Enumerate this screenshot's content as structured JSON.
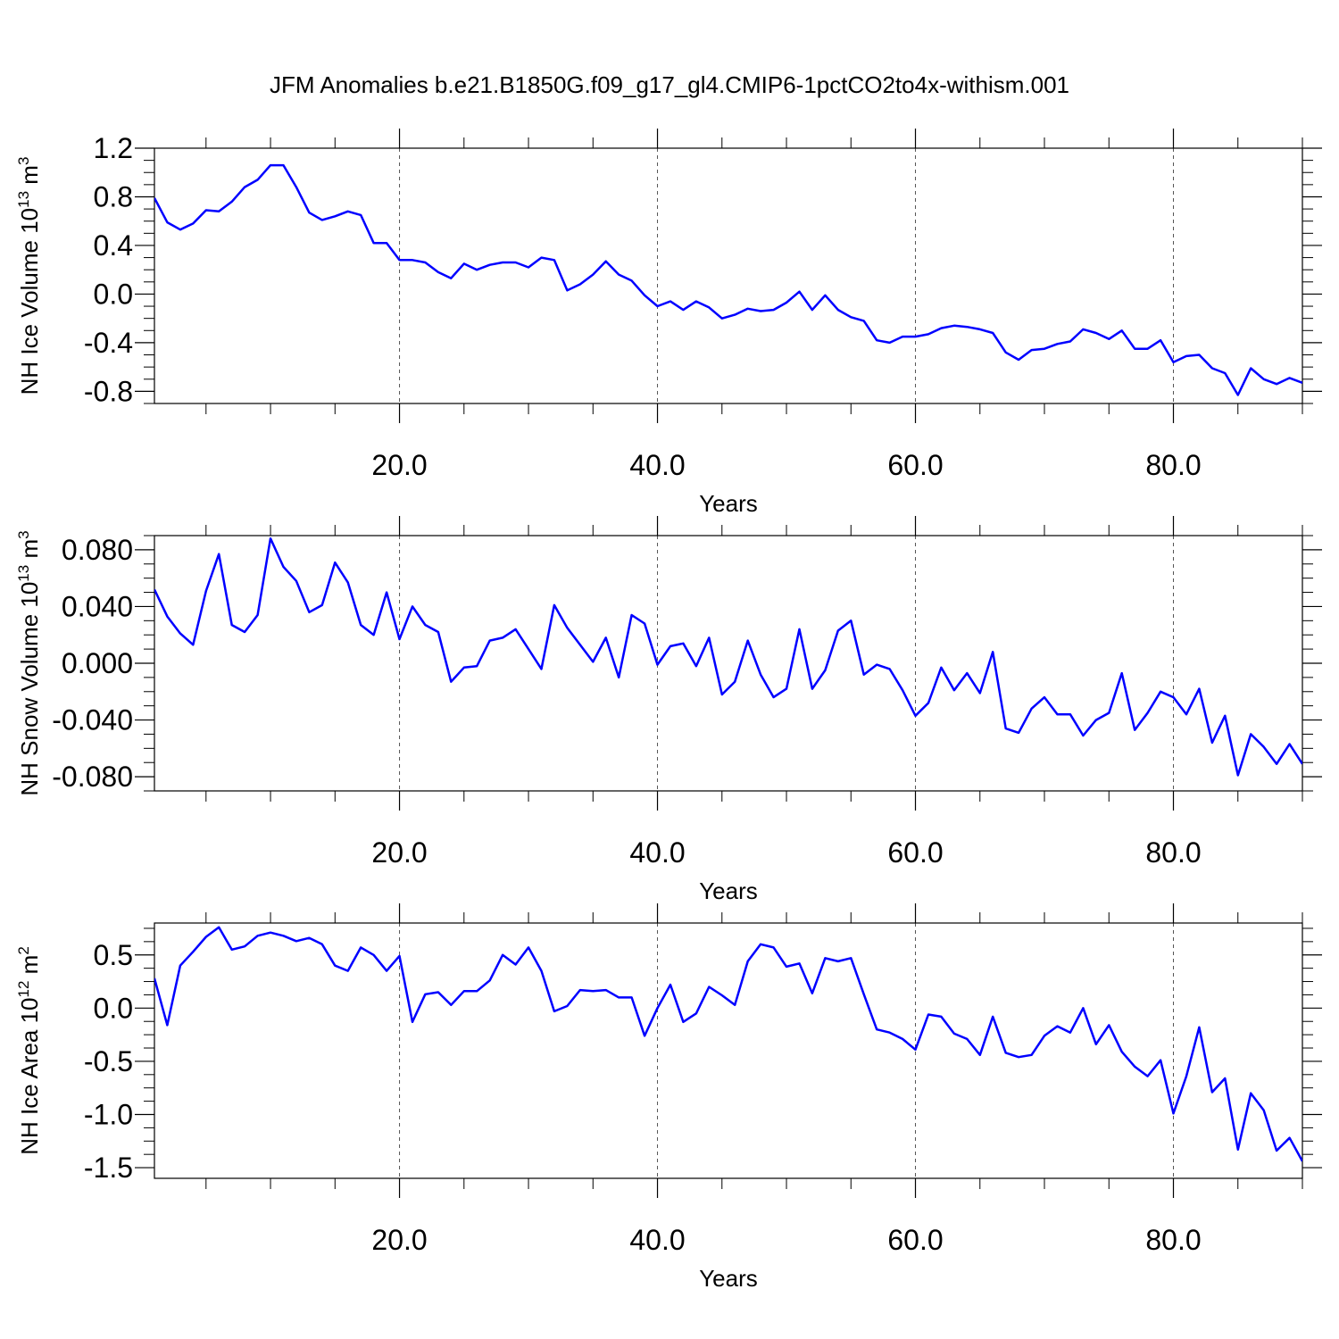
{
  "title": "JFM Anomalies b.e21.B1850G.f09_g17_gl4.CMIP6-1pctCO2to4x-withism.001",
  "series_color": "#0000ff",
  "chart_data": [
    {
      "type": "line",
      "ylabel": "NH Ice Volume 10",
      "ylabel_exp": "13",
      "ylabel_unit": "m",
      "ylabel_unit_exp": "3",
      "xlabel": "Years",
      "xlim": [
        1,
        90
      ],
      "ylim": [
        -0.9,
        1.2
      ],
      "xticks": [
        20,
        40,
        60,
        80
      ],
      "xtick_labels": [
        "20.0",
        "40.0",
        "60.0",
        "80.0"
      ],
      "yticks": [
        1.2,
        0.8,
        0.4,
        0.0,
        -0.4,
        -0.8
      ],
      "ytick_labels": [
        "1.2",
        "0.8",
        "0.4",
        "0.0",
        "-0.4",
        "-0.8"
      ],
      "grid": "dashed vertical lines at x ticks",
      "values": [
        0.79,
        0.59,
        0.53,
        0.58,
        0.69,
        0.68,
        0.76,
        0.88,
        0.94,
        1.06,
        1.06,
        0.88,
        0.67,
        0.61,
        0.64,
        0.68,
        0.65,
        0.42,
        0.42,
        0.28,
        0.28,
        0.26,
        0.18,
        0.13,
        0.25,
        0.2,
        0.24,
        0.26,
        0.26,
        0.22,
        0.3,
        0.28,
        0.03,
        0.08,
        0.16,
        0.27,
        0.16,
        0.11,
        -0.01,
        -0.1,
        -0.06,
        -0.13,
        -0.06,
        -0.11,
        -0.2,
        -0.17,
        -0.12,
        -0.14,
        -0.13,
        -0.07,
        0.02,
        -0.13,
        -0.01,
        -0.13,
        -0.19,
        -0.22,
        -0.38,
        -0.4,
        -0.35,
        -0.35,
        -0.33,
        -0.28,
        -0.26,
        -0.27,
        -0.29,
        -0.32,
        -0.48,
        -0.54,
        -0.46,
        -0.45,
        -0.41,
        -0.39,
        -0.29,
        -0.32,
        -0.37,
        -0.3,
        -0.45,
        -0.45,
        -0.38,
        -0.56,
        -0.51,
        -0.5,
        -0.61,
        -0.65,
        -0.83,
        -0.61,
        -0.7,
        -0.74,
        -0.69,
        -0.73
      ]
    },
    {
      "type": "line",
      "ylabel": "NH Snow Volume 10",
      "ylabel_exp": "13",
      "ylabel_unit": "m",
      "ylabel_unit_exp": "3",
      "xlabel": "Years",
      "xlim": [
        1,
        90
      ],
      "ylim": [
        -0.09,
        0.09
      ],
      "xticks": [
        20,
        40,
        60,
        80
      ],
      "xtick_labels": [
        "20.0",
        "40.0",
        "60.0",
        "80.0"
      ],
      "yticks": [
        0.08,
        0.04,
        0.0,
        -0.04,
        -0.08
      ],
      "ytick_labels": [
        "0.080",
        "0.040",
        "0.000",
        "-0.040",
        "-0.080"
      ],
      "grid": "dashed vertical lines at x ticks",
      "values": [
        0.052,
        0.033,
        0.021,
        0.013,
        0.051,
        0.077,
        0.027,
        0.022,
        0.034,
        0.088,
        0.068,
        0.058,
        0.036,
        0.041,
        0.071,
        0.057,
        0.027,
        0.02,
        0.05,
        0.017,
        0.04,
        0.027,
        0.022,
        -0.013,
        -0.003,
        -0.002,
        0.016,
        0.018,
        0.024,
        0.01,
        -0.004,
        0.041,
        0.025,
        0.013,
        0.001,
        0.018,
        -0.01,
        0.034,
        0.028,
        -0.001,
        0.012,
        0.014,
        -0.002,
        0.018,
        -0.022,
        -0.013,
        0.016,
        -0.008,
        -0.024,
        -0.018,
        0.024,
        -0.018,
        -0.005,
        0.023,
        0.03,
        -0.008,
        -0.001,
        -0.004,
        -0.019,
        -0.037,
        -0.028,
        -0.003,
        -0.019,
        -0.007,
        -0.021,
        0.008,
        -0.046,
        -0.049,
        -0.032,
        -0.024,
        -0.036,
        -0.036,
        -0.051,
        -0.04,
        -0.035,
        -0.007,
        -0.047,
        -0.035,
        -0.02,
        -0.024,
        -0.036,
        -0.018,
        -0.056,
        -0.037,
        -0.079,
        -0.05,
        -0.059,
        -0.071,
        -0.057,
        -0.071
      ]
    },
    {
      "type": "line",
      "ylabel": "NH Ice Area 10",
      "ylabel_exp": "12",
      "ylabel_unit": "m",
      "ylabel_unit_exp": "2",
      "xlabel": "Years",
      "xlim": [
        1,
        90
      ],
      "ylim": [
        -1.6,
        0.8
      ],
      "xticks": [
        20,
        40,
        60,
        80
      ],
      "xtick_labels": [
        "20.0",
        "40.0",
        "60.0",
        "80.0"
      ],
      "yticks": [
        0.5,
        0.0,
        -0.5,
        -1.0,
        -1.5
      ],
      "ytick_labels": [
        "0.5",
        "0.0",
        "-0.5",
        "-1.0",
        "-1.5"
      ],
      "grid": "dashed vertical lines at x ticks",
      "values": [
        0.28,
        -0.16,
        0.4,
        0.53,
        0.67,
        0.76,
        0.55,
        0.58,
        0.68,
        0.71,
        0.68,
        0.63,
        0.66,
        0.6,
        0.4,
        0.35,
        0.57,
        0.5,
        0.35,
        0.49,
        -0.13,
        0.13,
        0.15,
        0.03,
        0.16,
        0.16,
        0.26,
        0.5,
        0.41,
        0.57,
        0.35,
        -0.03,
        0.02,
        0.17,
        0.16,
        0.17,
        0.1,
        0.1,
        -0.26,
        0.0,
        0.22,
        -0.13,
        -0.05,
        0.2,
        0.12,
        0.03,
        0.44,
        0.6,
        0.57,
        0.39,
        0.42,
        0.14,
        0.47,
        0.44,
        0.47,
        0.13,
        -0.2,
        -0.23,
        -0.29,
        -0.39,
        -0.06,
        -0.08,
        -0.24,
        -0.29,
        -0.44,
        -0.08,
        -0.42,
        -0.46,
        -0.44,
        -0.26,
        -0.17,
        -0.23,
        0.0,
        -0.34,
        -0.16,
        -0.41,
        -0.55,
        -0.64,
        -0.49,
        -0.99,
        -0.64,
        -0.18,
        -0.79,
        -0.66,
        -1.33,
        -0.8,
        -0.96,
        -1.34,
        -1.22,
        -1.44
      ]
    }
  ]
}
